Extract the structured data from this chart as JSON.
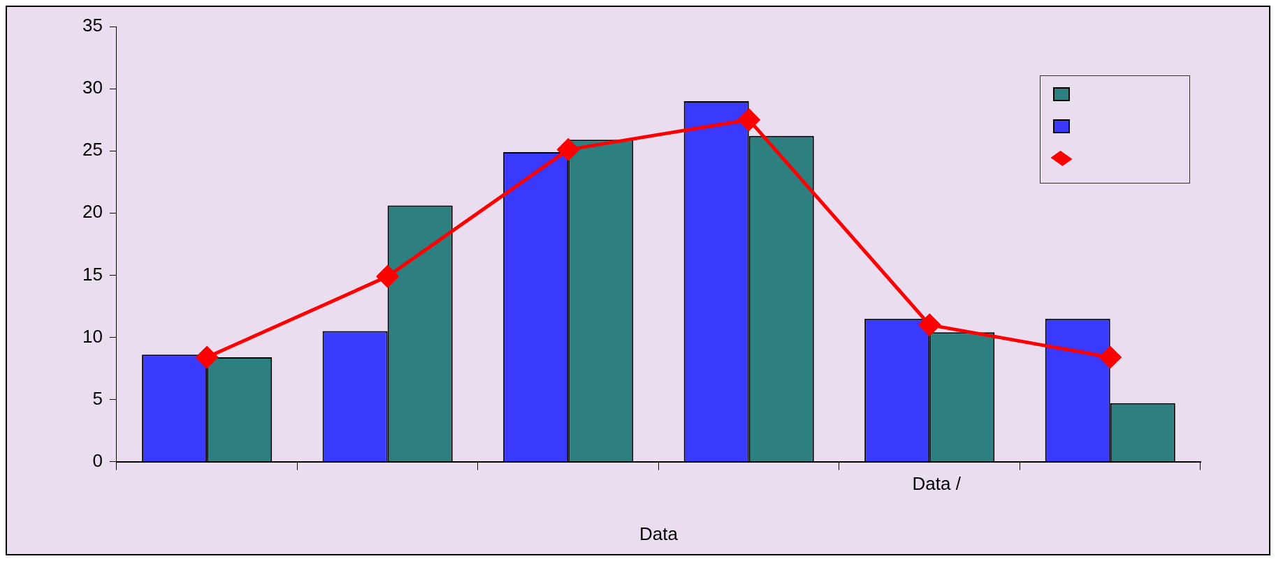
{
  "chart_data": {
    "type": "bar",
    "xlabel": "Data",
    "annotations": [
      "Data /"
    ],
    "categories": [
      null,
      null,
      null,
      null,
      null,
      null
    ],
    "series": [
      {
        "color": "#3a3aff",
        "values": [
          8.6,
          10.5,
          24.9,
          29.0,
          11.5,
          11.5
        ]
      },
      {
        "color": "#2e8080",
        "values": [
          8.4,
          20.6,
          25.9,
          26.2,
          10.4,
          4.7
        ]
      },
      {
        "type": "line",
        "color": "#ff0000",
        "marker": "diamond",
        "line_style": "solid",
        "values": [
          8.4,
          14.9,
          25.1,
          27.5,
          11.0,
          8.4
        ]
      }
    ],
    "ylim": [
      0,
      35
    ],
    "yticks": [
      0,
      5,
      10,
      15,
      20,
      25,
      30,
      35
    ],
    "grid": false
  }
}
